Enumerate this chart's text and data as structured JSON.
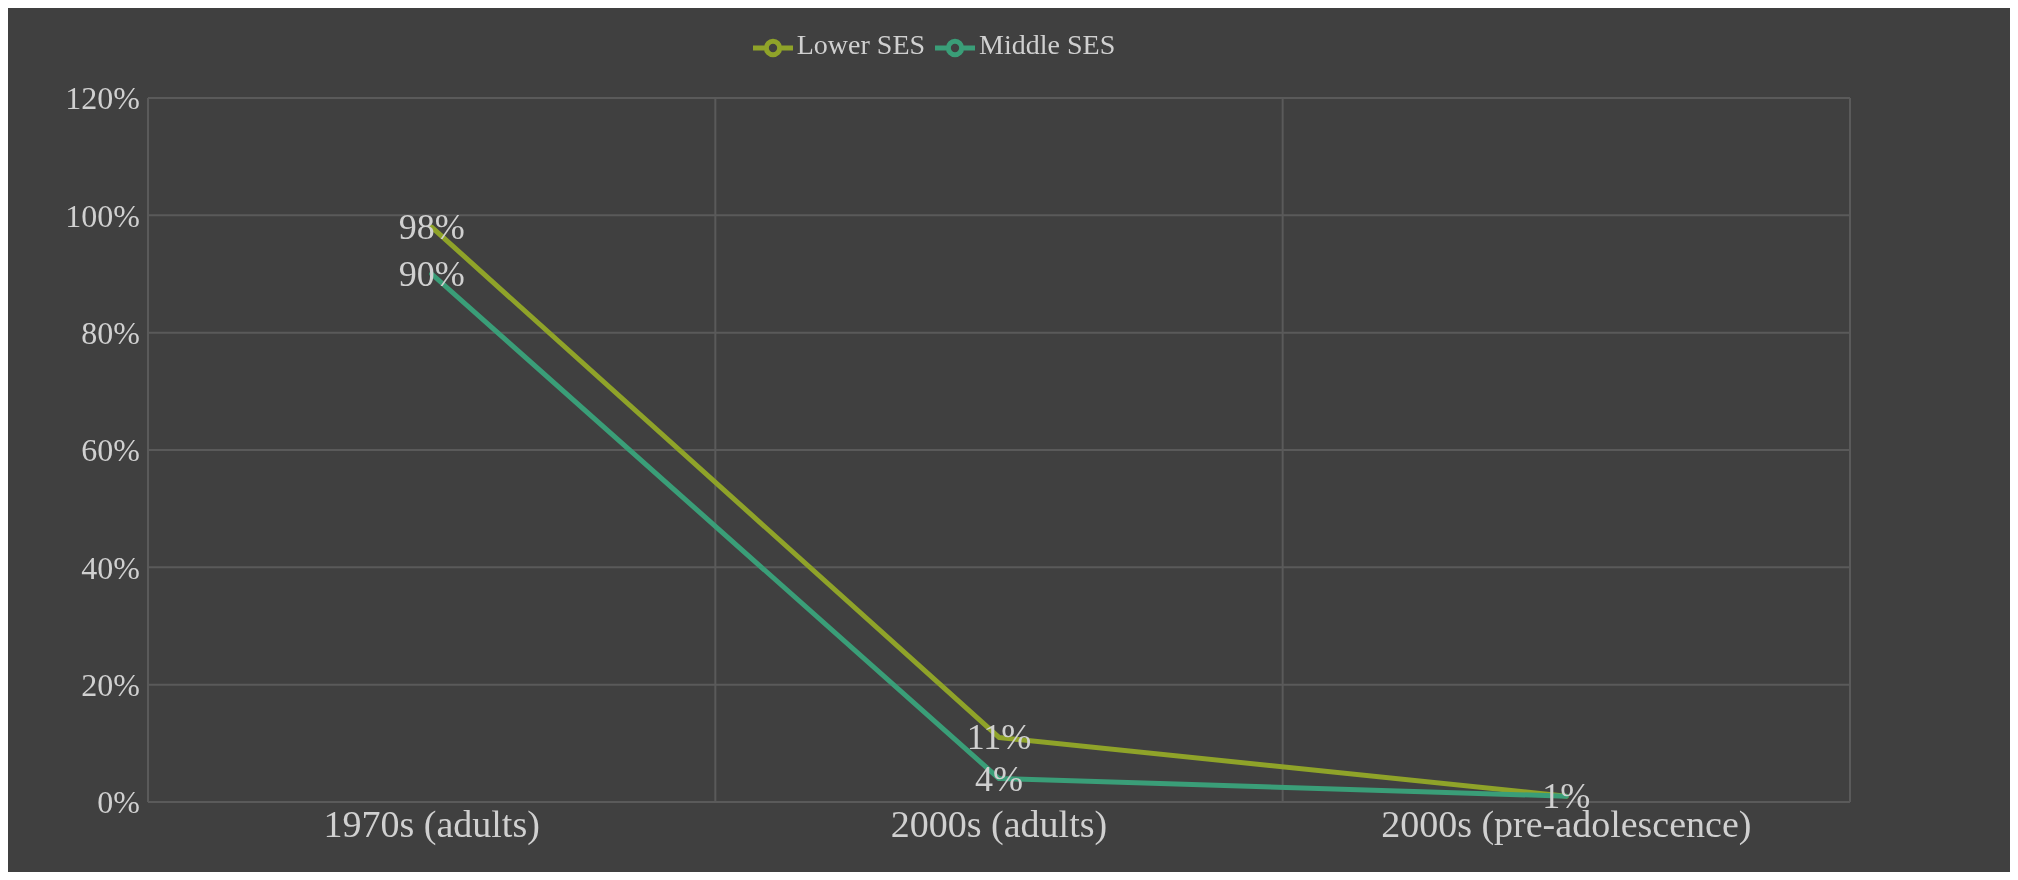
{
  "chart_data": {
    "type": "line",
    "categories": [
      "1970s (adults)",
      "2000s (adults)",
      "2000s (pre-adolescence)"
    ],
    "series": [
      {
        "name": "Lower SES",
        "color": "#8fa329",
        "values": [
          98,
          11,
          1
        ],
        "value_labels": [
          "98%",
          "11%",
          "1%"
        ]
      },
      {
        "name": "Middle SES",
        "color": "#3a9e78",
        "values": [
          90,
          4,
          1
        ],
        "value_labels": [
          "90%",
          "4%",
          null
        ]
      }
    ],
    "ylim": [
      0,
      120
    ],
    "yticks": [
      {
        "value": 0,
        "label": "0%"
      },
      {
        "value": 20,
        "label": "20%"
      },
      {
        "value": 40,
        "label": "40%"
      },
      {
        "value": 60,
        "label": "60%"
      },
      {
        "value": 80,
        "label": "80%"
      },
      {
        "value": 100,
        "label": "100%"
      },
      {
        "value": 120,
        "label": "120%"
      }
    ],
    "grid": true,
    "legend": "top",
    "marker": "none",
    "line_style": "solid"
  }
}
